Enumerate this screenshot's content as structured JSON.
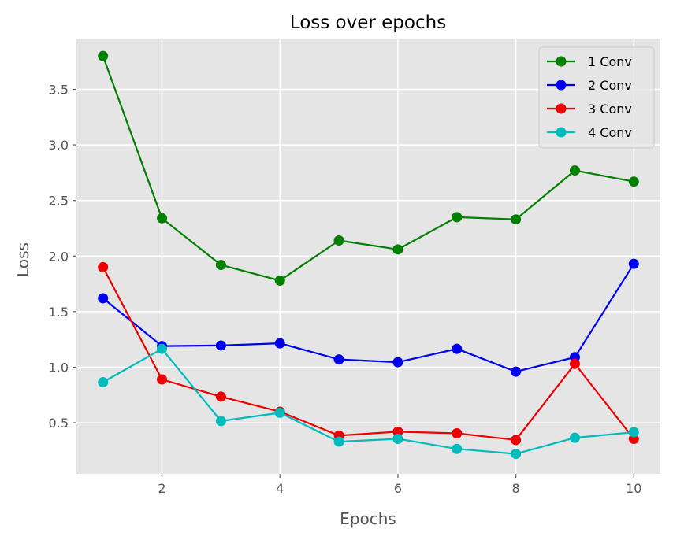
{
  "chart_data": {
    "type": "line",
    "title": "Loss over epochs",
    "xlabel": "Epochs",
    "ylabel": "Loss",
    "x": [
      1,
      2,
      3,
      4,
      5,
      6,
      7,
      8,
      9,
      10
    ],
    "xlim": [
      0.55,
      10.45
    ],
    "ylim": [
      0.04,
      3.95
    ],
    "xticks": [
      2,
      4,
      6,
      8,
      10
    ],
    "yticks": [
      0.5,
      1.0,
      1.5,
      2.0,
      2.5,
      3.0,
      3.5
    ],
    "xtick_labels": [
      "2",
      "4",
      "6",
      "8",
      "10"
    ],
    "ytick_labels": [
      "0.5",
      "1.0",
      "1.5",
      "2.0",
      "2.5",
      "3.0",
      "3.5"
    ],
    "grid": true,
    "legend_position": "top-right",
    "style": {
      "background": "#e5e5e5",
      "grid_color": "#ffffff"
    },
    "series": [
      {
        "name": "1 Conv",
        "color": "#008000",
        "values": [
          3.8,
          2.34,
          1.92,
          1.78,
          2.14,
          2.06,
          2.35,
          2.33,
          2.77,
          2.67
        ]
      },
      {
        "name": "2 Conv",
        "color": "#0000ee",
        "values": [
          1.62,
          1.19,
          1.195,
          1.215,
          1.07,
          1.045,
          1.165,
          0.96,
          1.09,
          1.93
        ]
      },
      {
        "name": "3 Conv",
        "color": "#ee0000",
        "values": [
          1.9,
          0.89,
          0.735,
          0.6,
          0.385,
          0.42,
          0.405,
          0.345,
          1.03,
          0.355
        ]
      },
      {
        "name": "4 Conv",
        "color": "#00bbbb",
        "values": [
          0.865,
          1.165,
          0.515,
          0.59,
          0.33,
          0.355,
          0.265,
          0.22,
          0.365,
          0.415
        ]
      }
    ]
  }
}
